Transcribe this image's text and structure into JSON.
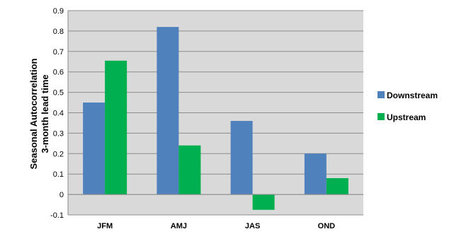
{
  "chart_data": {
    "type": "bar",
    "categories": [
      "JFM",
      "AMJ",
      "JAS",
      "OND"
    ],
    "series": [
      {
        "name": "Downstream",
        "values": [
          0.45,
          0.82,
          0.36,
          0.2
        ],
        "color": "#4F81BD"
      },
      {
        "name": "Upstream",
        "values": [
          0.655,
          0.24,
          -0.075,
          0.08
        ],
        "color": "#00B050"
      }
    ],
    "ylabel_lines": [
      "Seasonal Autocorrelation",
      "3-month lead time"
    ],
    "ylim": [
      -0.1,
      0.9
    ],
    "yticks": [
      "-0.1",
      "0",
      "0.1",
      "0.2",
      "0.3",
      "0.4",
      "0.5",
      "0.6",
      "0.7",
      "0.8",
      "0.9"
    ],
    "grid": true,
    "plot_background": "#D9D9D9",
    "legend_position": "right"
  }
}
